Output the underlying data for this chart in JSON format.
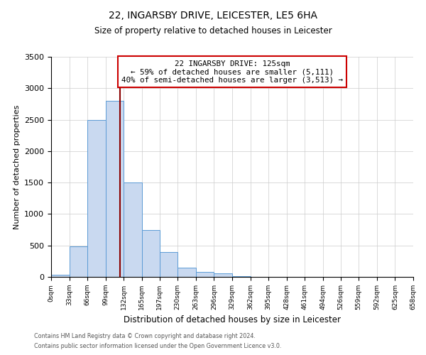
{
  "title_line1": "22, INGARSBY DRIVE, LEICESTER, LE5 6HA",
  "title_line2": "Size of property relative to detached houses in Leicester",
  "xlabel": "Distribution of detached houses by size in Leicester",
  "ylabel": "Number of detached properties",
  "bar_edges": [
    0,
    33,
    66,
    99,
    132,
    165,
    197,
    230,
    263,
    296,
    329,
    362,
    395,
    428,
    461,
    494,
    526,
    559,
    592,
    625,
    658
  ],
  "bar_heights": [
    30,
    480,
    2500,
    2800,
    1500,
    750,
    390,
    145,
    75,
    55,
    10,
    0,
    0,
    0,
    0,
    0,
    0,
    0,
    0,
    0
  ],
  "bar_color": "#c9d9f0",
  "bar_edgecolor": "#5b9bd5",
  "property_line_x": 125,
  "property_line_color": "#8b0000",
  "annotation_title": "22 INGARSBY DRIVE: 125sqm",
  "annotation_line1": "← 59% of detached houses are smaller (5,111)",
  "annotation_line2": "40% of semi-detached houses are larger (3,513) →",
  "annotation_box_edgecolor": "#cc0000",
  "annotation_box_facecolor": "#ffffff",
  "ylim": [
    0,
    3500
  ],
  "yticks": [
    0,
    500,
    1000,
    1500,
    2000,
    2500,
    3000,
    3500
  ],
  "tick_labels": [
    "0sqm",
    "33sqm",
    "66sqm",
    "99sqm",
    "132sqm",
    "165sqm",
    "197sqm",
    "230sqm",
    "263sqm",
    "296sqm",
    "329sqm",
    "362sqm",
    "395sqm",
    "428sqm",
    "461sqm",
    "494sqm",
    "526sqm",
    "559sqm",
    "592sqm",
    "625sqm",
    "658sqm"
  ],
  "grid_color": "#cccccc",
  "background_color": "#ffffff",
  "footer_line1": "Contains HM Land Registry data © Crown copyright and database right 2024.",
  "footer_line2": "Contains public sector information licensed under the Open Government Licence v3.0."
}
